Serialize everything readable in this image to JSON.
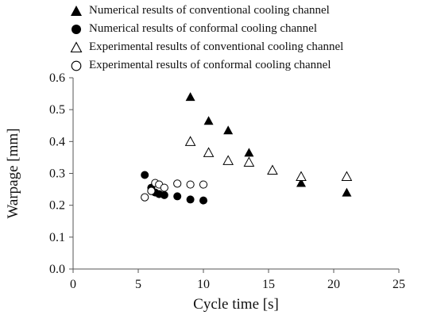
{
  "chart_data": {
    "type": "scatter",
    "xlabel": "Cycle time [s]",
    "ylabel": "Warpage [mm]",
    "xlim": [
      0,
      25
    ],
    "ylim": [
      0,
      0.6
    ],
    "x_ticks": [
      "0",
      "5",
      "10",
      "15",
      "20",
      "25"
    ],
    "y_ticks": [
      "0.0",
      "0.1",
      "0.2",
      "0.3",
      "0.4",
      "0.5",
      "0.6"
    ],
    "grid": false,
    "legend_position": "top",
    "series": [
      {
        "name": "Numerical results of conventional cooling channel",
        "marker": "filled-triangle",
        "color": "#000000",
        "points": [
          [
            9.0,
            0.54
          ],
          [
            10.4,
            0.465
          ],
          [
            11.9,
            0.435
          ],
          [
            13.5,
            0.365
          ],
          [
            17.5,
            0.27
          ],
          [
            21.0,
            0.24
          ]
        ]
      },
      {
        "name": "Numerical results of conformal cooling channel",
        "marker": "filled-circle",
        "color": "#000000",
        "points": [
          [
            5.5,
            0.295
          ],
          [
            6.0,
            0.255
          ],
          [
            6.3,
            0.24
          ],
          [
            6.6,
            0.235
          ],
          [
            7.0,
            0.232
          ],
          [
            8.0,
            0.228
          ],
          [
            9.0,
            0.218
          ],
          [
            10.0,
            0.215
          ]
        ]
      },
      {
        "name": "Experimental results of conventional cooling channel",
        "marker": "open-triangle",
        "color": "#000000",
        "points": [
          [
            9.0,
            0.4
          ],
          [
            10.4,
            0.365
          ],
          [
            11.9,
            0.34
          ],
          [
            13.5,
            0.335
          ],
          [
            15.3,
            0.31
          ],
          [
            17.5,
            0.29
          ],
          [
            21.0,
            0.29
          ]
        ]
      },
      {
        "name": "Experimental results of conformal cooling channel",
        "marker": "open-circle",
        "color": "#000000",
        "points": [
          [
            5.5,
            0.225
          ],
          [
            6.0,
            0.245
          ],
          [
            6.3,
            0.27
          ],
          [
            6.6,
            0.265
          ],
          [
            7.0,
            0.255
          ],
          [
            8.0,
            0.268
          ],
          [
            9.0,
            0.265
          ],
          [
            10.0,
            0.265
          ]
        ]
      }
    ]
  }
}
